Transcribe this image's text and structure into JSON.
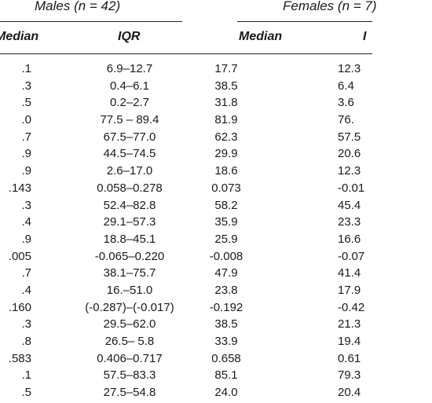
{
  "header": {
    "males_title": "Males (n = 42)",
    "females_title": "Females (n = 7)",
    "col_median_left": "Median",
    "col_iqr_left": "IQR",
    "col_median_right": "Median",
    "col_iqr_right": "I"
  },
  "rows": [
    {
      "m_med": ".1",
      "m_iqr": "6.9–12.7",
      "f_med": "17.7",
      "f_iqr": "12.3"
    },
    {
      "m_med": ".3",
      "m_iqr": "0.4–6.1",
      "f_med": "38.5",
      "f_iqr": "6.4"
    },
    {
      "m_med": ".5",
      "m_iqr": "0.2–2.7",
      "f_med": "31.8",
      "f_iqr": "3.6"
    },
    {
      "m_med": ".0",
      "m_iqr": "77.5 – 89.4",
      "f_med": "81.9",
      "f_iqr": "76."
    },
    {
      "m_med": ".7",
      "m_iqr": "67.5–77.0",
      "f_med": "62.3",
      "f_iqr": "57.5"
    },
    {
      "m_med": ".9",
      "m_iqr": "44.5–74.5",
      "f_med": "29.9",
      "f_iqr": "20.6"
    },
    {
      "m_med": ".9",
      "m_iqr": "2.6–17.0",
      "f_med": "18.6",
      "f_iqr": "12.3"
    },
    {
      "m_med": ".143",
      "m_iqr": "0.058–0.278",
      "f_med": "0.073",
      "f_iqr": "-0.01"
    },
    {
      "m_med": ".3",
      "m_iqr": "52.4–82.8",
      "f_med": "58.2",
      "f_iqr": "45.4"
    },
    {
      "m_med": ".4",
      "m_iqr": "29.1–57.3",
      "f_med": "35.9",
      "f_iqr": "23.3"
    },
    {
      "m_med": ".9",
      "m_iqr": "18.8–45.1",
      "f_med": "25.9",
      "f_iqr": "16.6"
    },
    {
      "m_med": ".005",
      "m_iqr": "-0.065–0.220",
      "f_med": "-0.008",
      "f_iqr": "-0.07"
    },
    {
      "m_med": ".7",
      "m_iqr": "38.1–75.7",
      "f_med": "47.9",
      "f_iqr": "41.4"
    },
    {
      "m_med": ".4",
      "m_iqr": "16.–51.0",
      "f_med": "23.8",
      "f_iqr": "17.9"
    },
    {
      "m_med": ".160",
      "m_iqr": "(-0.287)–(-0.017)",
      "f_med": "-0.192",
      "f_iqr": "-0.42"
    },
    {
      "m_med": ".3",
      "m_iqr": "29.5–62.0",
      "f_med": "38.5",
      "f_iqr": "21.3"
    },
    {
      "m_med": ".8",
      "m_iqr": "26.5– 5.8",
      "f_med": "33.9",
      "f_iqr": "19.4"
    },
    {
      "m_med": ".583",
      "m_iqr": "0.406–0.717",
      "f_med": "0.658",
      "f_iqr": "0.61"
    },
    {
      "m_med": ".1",
      "m_iqr": "57.5–83.3",
      "f_med": "85.1",
      "f_iqr": "79.3"
    },
    {
      "m_med": ".5",
      "m_iqr": "27.5–54.8",
      "f_med": "24.0",
      "f_iqr": "20.4"
    }
  ]
}
